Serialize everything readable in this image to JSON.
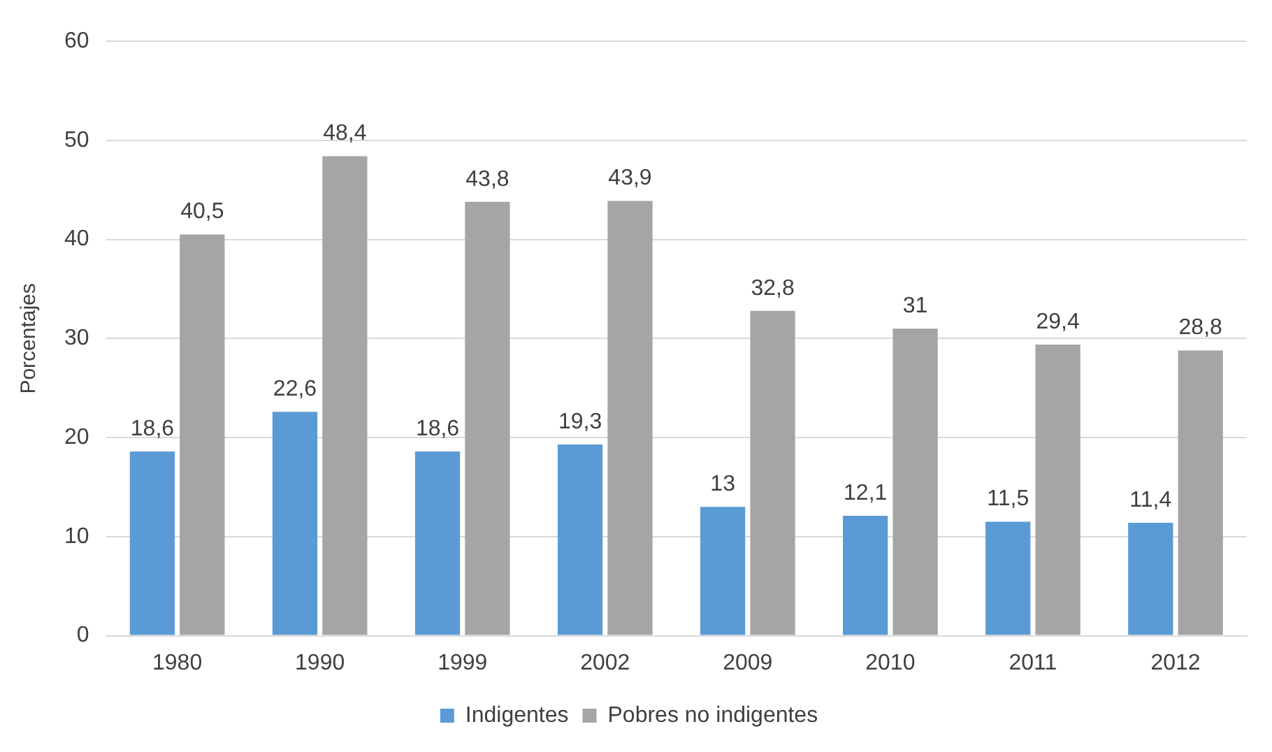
{
  "chart_data": {
    "type": "bar",
    "ylabel": "Porcentajes",
    "categories": [
      "1980",
      "1990",
      "1999",
      "2002",
      "2009",
      "2010",
      "2011",
      "2012"
    ],
    "series": [
      {
        "name": "Indigentes",
        "color": "#5b9bd5",
        "values": [
          18.6,
          22.6,
          18.6,
          19.3,
          13,
          12.1,
          11.5,
          11.4
        ],
        "value_labels": [
          "18,6",
          "22,6",
          "18,6",
          "19,3",
          "13",
          "12,1",
          "11,5",
          "11,4"
        ]
      },
      {
        "name": "Pobres no indigentes",
        "color": "#a5a5a5",
        "values": [
          40.5,
          48.4,
          43.8,
          43.9,
          32.8,
          31,
          29.4,
          28.8
        ],
        "value_labels": [
          "40,5",
          "48,4",
          "43,8",
          "43,9",
          "32,8",
          "31",
          "29,4",
          "28,8"
        ]
      }
    ],
    "ylim": [
      0,
      60
    ],
    "yticks": [
      0,
      10,
      20,
      30,
      40,
      50,
      60
    ],
    "grid": "y",
    "legend": "bottom"
  }
}
